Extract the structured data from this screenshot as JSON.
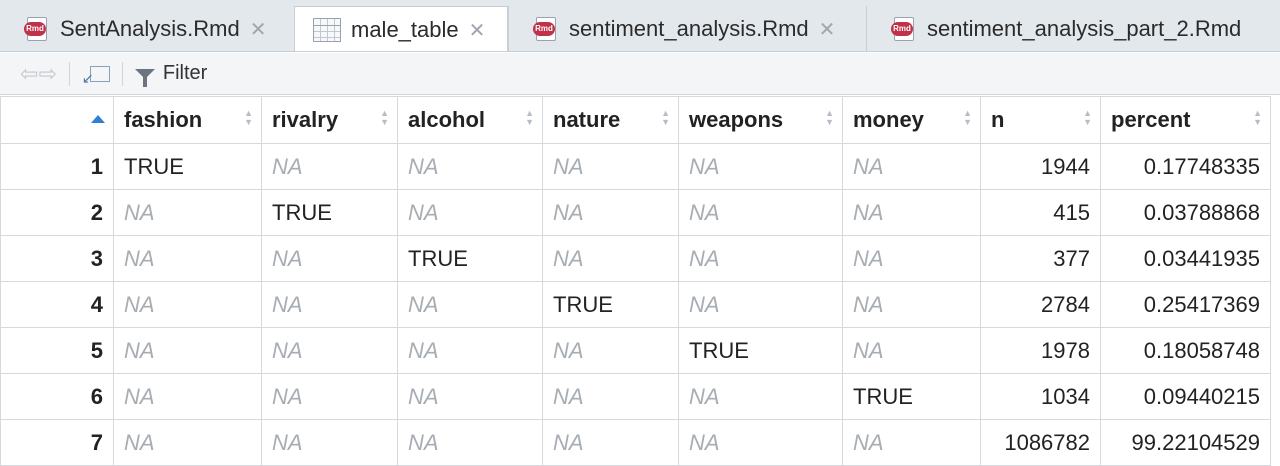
{
  "tabs": [
    {
      "label": "SentAnalysis.Rmd",
      "icon": "rmd-file-icon",
      "badge": "Rmd",
      "active": false
    },
    {
      "label": "male_table",
      "icon": "table-icon",
      "active": true
    },
    {
      "label": "sentiment_analysis.Rmd",
      "icon": "rmd-file-icon",
      "badge": "Rmd",
      "active": false
    },
    {
      "label": "sentiment_analysis_part_2.Rmd",
      "icon": "rmd-file-icon",
      "badge": "Rmd",
      "active": false
    }
  ],
  "toolbar": {
    "back_icon": "back-arrow-icon",
    "forward_icon": "forward-arrow-icon",
    "popout_icon": "popout-icon",
    "filter_label": "Filter"
  },
  "table": {
    "columns": [
      "fashion",
      "rivalry",
      "alcohol",
      "nature",
      "weapons",
      "money",
      "n",
      "percent"
    ],
    "rows": [
      {
        "idx": "1",
        "cells": [
          "TRUE",
          "NA",
          "NA",
          "NA",
          "NA",
          "NA",
          "1944",
          "0.17748335"
        ]
      },
      {
        "idx": "2",
        "cells": [
          "NA",
          "TRUE",
          "NA",
          "NA",
          "NA",
          "NA",
          "415",
          "0.03788868"
        ]
      },
      {
        "idx": "3",
        "cells": [
          "NA",
          "NA",
          "TRUE",
          "NA",
          "NA",
          "NA",
          "377",
          "0.03441935"
        ]
      },
      {
        "idx": "4",
        "cells": [
          "NA",
          "NA",
          "NA",
          "TRUE",
          "NA",
          "NA",
          "2784",
          "0.25417369"
        ]
      },
      {
        "idx": "5",
        "cells": [
          "NA",
          "NA",
          "NA",
          "NA",
          "TRUE",
          "NA",
          "1978",
          "0.18058748"
        ]
      },
      {
        "idx": "6",
        "cells": [
          "NA",
          "NA",
          "NA",
          "NA",
          "NA",
          "TRUE",
          "1034",
          "0.09440215"
        ]
      },
      {
        "idx": "7",
        "cells": [
          "NA",
          "NA",
          "NA",
          "NA",
          "NA",
          "NA",
          "1086782",
          "99.22104529"
        ]
      }
    ]
  },
  "colors": {
    "sort_active": "#2f7fd6",
    "na_text": "#a7adb3",
    "rmd_badge": "#c0314a"
  }
}
